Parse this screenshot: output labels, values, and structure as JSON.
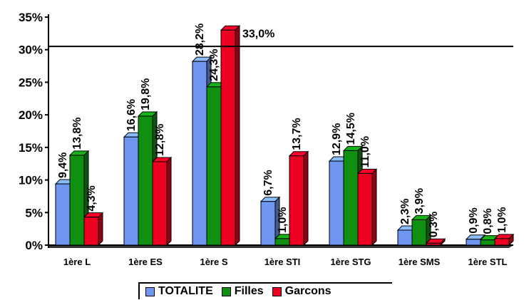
{
  "chart_data": {
    "type": "bar",
    "title": "",
    "xlabel": "",
    "ylabel": "",
    "ylim": [
      0,
      35
    ],
    "y_ticks": [
      "0%",
      "5%",
      "10%",
      "15%",
      "20%",
      "25%",
      "30%",
      "35%"
    ],
    "reference_line": 30.5,
    "categories": [
      "1ère L",
      "1ère ES",
      "1ère S",
      "1ère STI",
      "1ère STG",
      "1ère SMS",
      "1ère STL"
    ],
    "series": [
      {
        "name": "TOTALITE",
        "color": "#6f96f0",
        "values": [
          9.4,
          16.6,
          28.2,
          6.7,
          12.9,
          2.3,
          0.9
        ],
        "labels": [
          "9,4%",
          "16,6%",
          "28,2%",
          "6,7%",
          "12,9%",
          "2,3%",
          "0,9%"
        ]
      },
      {
        "name": "Filles",
        "color": "#109010",
        "values": [
          13.8,
          19.8,
          24.3,
          1.0,
          14.5,
          3.9,
          0.8
        ],
        "labels": [
          "13,8%",
          "19,8%",
          "24,3%",
          "1,0%",
          "14,5%",
          "3,9%",
          "0,8%"
        ]
      },
      {
        "name": "Garcons",
        "color": "#ee0020",
        "values": [
          4.3,
          12.8,
          33.0,
          13.7,
          11.0,
          0.3,
          1.0
        ],
        "labels": [
          "4,3%",
          "12,8%",
          "33,0%",
          "13,7%",
          "11,0%",
          "0,3%",
          "1,0%"
        ]
      }
    ],
    "legend": {
      "position": "bottom"
    },
    "grid": false
  }
}
